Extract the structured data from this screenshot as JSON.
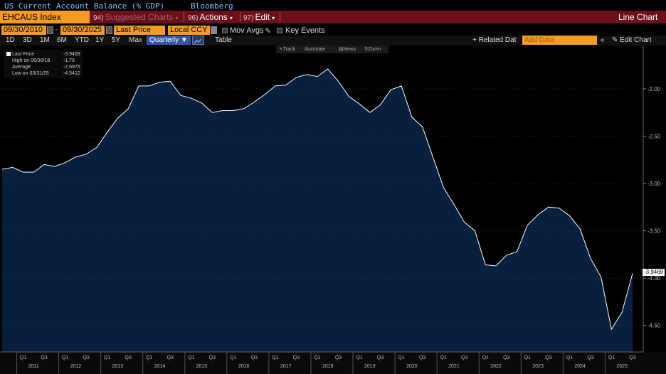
{
  "header": {
    "title": "US Current Account Balance (% GDP)",
    "source": "Bloomberg"
  },
  "toolbar": {
    "ticker": "EHCAUS Index",
    "suggested": {
      "num": "94)",
      "label": "Suggested Charts"
    },
    "actions": {
      "num": "96)",
      "label": "Actions"
    },
    "edit": {
      "num": "97)",
      "label": "Edit"
    },
    "view_label": "Line Chart"
  },
  "date_row": {
    "start_date": "09/30/2010",
    "end_date": "09/30/2025",
    "field": "Last Price",
    "currency": "Local CCY",
    "mov_avgs": "Mov Avgs",
    "key_events": "Key Events"
  },
  "period_row": {
    "periods": [
      "1D",
      "3D",
      "1M",
      "6M",
      "YTD",
      "1Y",
      "5Y",
      "Max"
    ],
    "frequency": "Quarterly",
    "table": "Table",
    "related": "+ Related Dat",
    "add_data_placeholder": "Add Data",
    "edit_chart": "Edit Chart"
  },
  "tools": {
    "track": "Track",
    "annotate": "Annotate",
    "news": "News",
    "zoom": "Zoom"
  },
  "legend": {
    "last_label": "Last Price",
    "last_value": "-3.9469",
    "high_label": "High on 06/30/18",
    "high_value": "-1.79",
    "avg_label": "Average",
    "avg_value": "-2.6975",
    "low_label": "Low on 03/31/25",
    "low_value": "-4.5412"
  },
  "colors": {
    "area_fill": "#07203f",
    "line": "#ffffff",
    "accent": "#f49a25",
    "toolbar": "#6b0f1a"
  },
  "chart_data": {
    "type": "area",
    "y_ticks": [
      -2.0,
      -2.5,
      -3.0,
      -3.5,
      -4.0,
      -4.5
    ],
    "y_tick_labels": [
      "-2.00",
      "-2.50",
      "-3.00",
      "-3.50",
      "-4.00",
      "-4.50"
    ],
    "ylim": [
      -4.78,
      -1.55
    ],
    "last_value_label": "-3.9469",
    "year_labels": [
      "2011",
      "2012",
      "2013",
      "2014",
      "2015",
      "2016",
      "2017",
      "2018",
      "2019",
      "2020",
      "2021",
      "2022",
      "2023",
      "2024",
      "2025"
    ],
    "quarter_labels": [
      "Q1",
      "Q3"
    ],
    "x": [
      "2010Q3",
      "2010Q4",
      "2011Q1",
      "2011Q2",
      "2011Q3",
      "2011Q4",
      "2012Q1",
      "2012Q2",
      "2012Q3",
      "2012Q4",
      "2013Q1",
      "2013Q2",
      "2013Q3",
      "2013Q4",
      "2014Q1",
      "2014Q2",
      "2014Q3",
      "2014Q4",
      "2015Q1",
      "2015Q2",
      "2015Q3",
      "2015Q4",
      "2016Q1",
      "2016Q2",
      "2016Q3",
      "2016Q4",
      "2017Q1",
      "2017Q2",
      "2017Q3",
      "2017Q4",
      "2018Q1",
      "2018Q2",
      "2018Q3",
      "2018Q4",
      "2019Q1",
      "2019Q2",
      "2019Q3",
      "2019Q4",
      "2020Q1",
      "2020Q2",
      "2020Q3",
      "2020Q4",
      "2021Q1",
      "2021Q2",
      "2021Q3",
      "2021Q4",
      "2022Q1",
      "2022Q2",
      "2022Q3",
      "2022Q4",
      "2023Q1",
      "2023Q2",
      "2023Q3",
      "2023Q4",
      "2024Q1",
      "2024Q2",
      "2024Q3",
      "2024Q4",
      "2025Q1",
      "2025Q2",
      "2025Q3"
    ],
    "values": [
      -2.85,
      -2.83,
      -2.88,
      -2.88,
      -2.8,
      -2.82,
      -2.78,
      -2.72,
      -2.69,
      -2.62,
      -2.46,
      -2.31,
      -2.21,
      -1.97,
      -1.97,
      -1.93,
      -1.92,
      -2.07,
      -2.1,
      -2.15,
      -2.25,
      -2.23,
      -2.23,
      -2.21,
      -2.14,
      -2.06,
      -1.97,
      -1.96,
      -1.88,
      -1.85,
      -1.87,
      -1.79,
      -1.92,
      -2.08,
      -2.16,
      -2.25,
      -2.17,
      -2.01,
      -1.97,
      -2.3,
      -2.4,
      -2.72,
      -3.04,
      -3.22,
      -3.41,
      -3.5,
      -3.86,
      -3.87,
      -3.76,
      -3.72,
      -3.44,
      -3.33,
      -3.25,
      -3.26,
      -3.34,
      -3.48,
      -3.79,
      -3.99,
      -4.54,
      -4.36,
      -3.95
    ]
  }
}
